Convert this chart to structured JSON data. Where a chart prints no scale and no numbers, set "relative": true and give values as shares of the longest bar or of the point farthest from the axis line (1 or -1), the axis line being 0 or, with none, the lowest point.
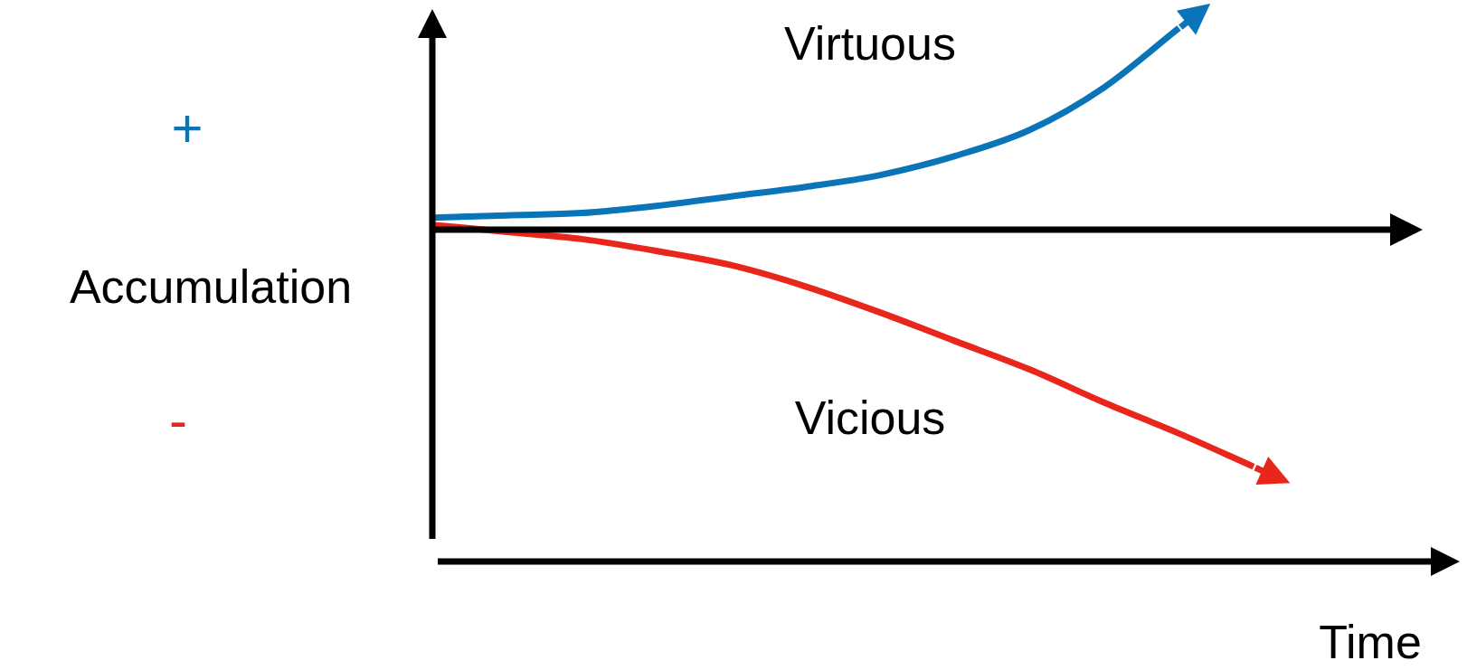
{
  "chart_data": {
    "type": "line",
    "relative": true,
    "xlabel": "Time",
    "ylabel": "Accumulation",
    "categories": [
      null,
      null,
      null,
      null,
      null,
      null,
      null,
      null,
      null,
      null,
      null,
      null
    ],
    "series": [
      {
        "name": "Virtuous",
        "color": "#0a74b8",
        "values": [
          0.05,
          0.06,
          0.07,
          0.1,
          0.14,
          0.18,
          0.23,
          0.31,
          0.42,
          0.6,
          0.85,
          null
        ]
      },
      {
        "name": "Vicious",
        "color": "#e8261b",
        "values": [
          0.02,
          -0.01,
          -0.04,
          -0.09,
          -0.15,
          -0.24,
          -0.35,
          -0.47,
          -0.59,
          -0.73,
          -0.86,
          -1
        ]
      }
    ],
    "annotations": [
      "+",
      "-"
    ],
    "legend": false,
    "marker": "none",
    "line_style": "solid"
  }
}
